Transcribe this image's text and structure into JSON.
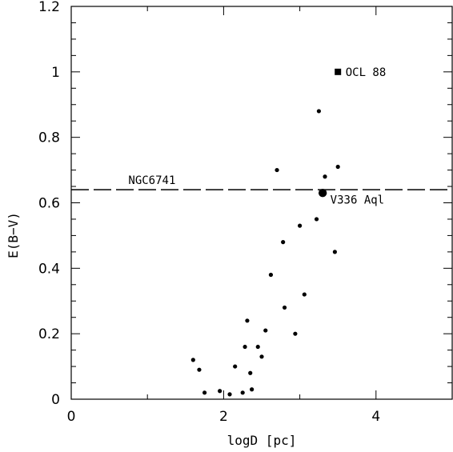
{
  "chart_data": {
    "type": "scatter",
    "xlabel": "logD [pc]",
    "ylabel": "E(B−V)",
    "xlim": [
      0,
      5
    ],
    "ylim": [
      0,
      1.2
    ],
    "x_ticks": [
      0,
      2,
      4
    ],
    "x_tick_labels": [
      "0",
      "2",
      "4"
    ],
    "y_ticks": [
      0,
      0.2,
      0.4,
      0.6,
      0.8,
      1,
      1.2
    ],
    "y_tick_labels": [
      "0",
      "0.2",
      "0.4",
      "0.6",
      "0.8",
      "1",
      "1.2"
    ],
    "grid": false,
    "series": [
      {
        "marker": "small-dot",
        "points": [
          {
            "x": 1.6,
            "y": 0.12
          },
          {
            "x": 1.68,
            "y": 0.09
          },
          {
            "x": 1.75,
            "y": 0.02
          },
          {
            "x": 1.95,
            "y": 0.025
          },
          {
            "x": 2.08,
            "y": 0.015
          },
          {
            "x": 2.15,
            "y": 0.1
          },
          {
            "x": 2.25,
            "y": 0.02
          },
          {
            "x": 2.28,
            "y": 0.16
          },
          {
            "x": 2.31,
            "y": 0.24
          },
          {
            "x": 2.35,
            "y": 0.08
          },
          {
            "x": 2.37,
            "y": 0.03
          },
          {
            "x": 2.45,
            "y": 0.16
          },
          {
            "x": 2.5,
            "y": 0.13
          },
          {
            "x": 2.55,
            "y": 0.21
          },
          {
            "x": 2.62,
            "y": 0.38
          },
          {
            "x": 2.7,
            "y": 0.7
          },
          {
            "x": 2.78,
            "y": 0.48
          },
          {
            "x": 2.8,
            "y": 0.28
          },
          {
            "x": 2.94,
            "y": 0.2
          },
          {
            "x": 3.0,
            "y": 0.53
          },
          {
            "x": 3.06,
            "y": 0.32
          },
          {
            "x": 3.22,
            "y": 0.55
          },
          {
            "x": 3.25,
            "y": 0.88
          },
          {
            "x": 3.33,
            "y": 0.68
          },
          {
            "x": 3.46,
            "y": 0.45
          },
          {
            "x": 3.5,
            "y": 0.71
          }
        ]
      },
      {
        "marker": "large-dot",
        "points": [
          {
            "x": 3.3,
            "y": 0.63
          }
        ]
      },
      {
        "marker": "square",
        "points": [
          {
            "x": 3.5,
            "y": 1.0
          }
        ]
      }
    ],
    "reference_line": {
      "y": 0.64,
      "style": "dashed"
    },
    "annotations": [
      {
        "text": "OCL 88",
        "x": 3.6,
        "y": 1.0
      },
      {
        "text": "V336 Aql",
        "x": 3.4,
        "y": 0.61
      },
      {
        "text": "NGC6741",
        "x": 0.75,
        "y": 0.67
      }
    ]
  }
}
